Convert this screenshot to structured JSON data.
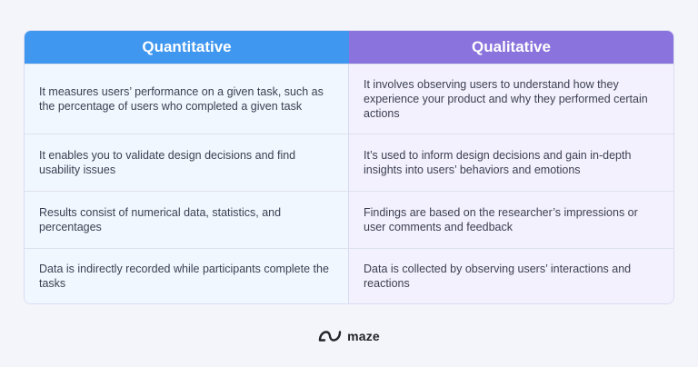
{
  "table": {
    "headers": {
      "left": "Quantitative",
      "right": "Qualitative"
    },
    "rows": [
      {
        "left": "It measures users’ performance on a given task, such as the percentage of users who completed a given task",
        "right": "It involves observing users to understand how they experience your product and why they performed certain actions"
      },
      {
        "left": "It enables you to validate design decisions and find usability issues",
        "right": "It’s used to inform design decisions and gain in-depth insights into users’ behaviors and emotions"
      },
      {
        "left": "Results consist of numerical data, statistics, and percentages",
        "right": "Findings are based on the researcher’s impressions or user comments and feedback"
      },
      {
        "left": "Data is indirectly recorded while participants complete the tasks",
        "right": "Data is collected by observing users’ interactions and reactions"
      }
    ]
  },
  "brand": {
    "name": "maze",
    "icon": "maze-logo-icon"
  },
  "colors": {
    "left_header": "#3f97f0",
    "right_header": "#8a73dc",
    "left_cell": "#f1f7fe",
    "right_cell": "#f3f1fd",
    "background": "#f4f5fa"
  }
}
